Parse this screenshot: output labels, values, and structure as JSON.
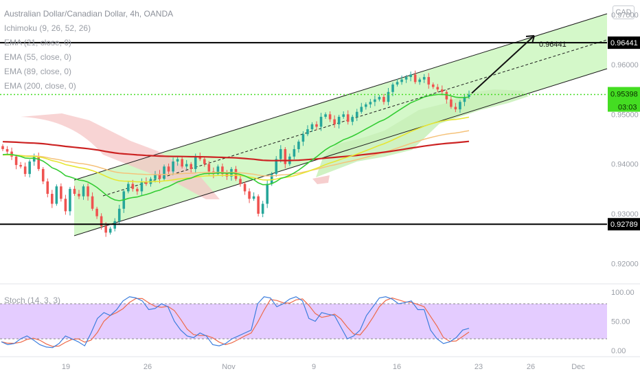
{
  "header": {
    "symbol_title": "Australian Dollar/Canadian Dollar, 4h, OANDA",
    "indicators": [
      "Ichimoku (9, 26, 52, 26)",
      "EMA (21, close, 0)",
      "EMA (55, close, 0)",
      "EMA (89, close, 0)",
      "EMA (200, close, 0)"
    ],
    "currency": "CAD"
  },
  "colors": {
    "up_candle": "#26a69a",
    "down_candle": "#ef5350",
    "channel_fill": "#ccf7c0",
    "ema21": "#33cc33",
    "ema55": "#e6e633",
    "ema89": "#f5c27a",
    "ema200": "#cc2222",
    "cloud_bull": "#c8f0b8",
    "cloud_bear": "#f5c6c6",
    "current_price": "#44dd22",
    "stoch_band": "#e4ccff",
    "stoch_k": "#3b7ddd",
    "stoch_d": "#ee6a4a"
  },
  "chart_data": {
    "type": "candlestick",
    "title": "Australian Dollar/Canadian Dollar, 4h, OANDA",
    "y_range": [
      0.917,
      0.973
    ],
    "y_ticks": [
      "0.97000",
      "0.96000",
      "0.95000",
      "0.94000",
      "0.93000",
      "0.92000"
    ],
    "x_ticks": [
      "19",
      "26",
      "Nov",
      "9",
      "16",
      "23",
      "26",
      "Dec"
    ],
    "price_labels": {
      "resistance": "0.96441",
      "current": "0.95398",
      "countdown": "03:03",
      "support": "0.92789"
    },
    "horizontal_levels": [
      0.96441,
      0.92789
    ],
    "current_price": 0.95398,
    "arrow_target_label": "0.96441",
    "close_series": [
      0.943,
      0.9425,
      0.9415,
      0.9398,
      0.9395,
      0.938,
      0.9405,
      0.9415,
      0.939,
      0.9365,
      0.934,
      0.932,
      0.9355,
      0.933,
      0.9305,
      0.935,
      0.934,
      0.9335,
      0.9355,
      0.9335,
      0.931,
      0.9295,
      0.9275,
      0.9262,
      0.927,
      0.9285,
      0.931,
      0.9345,
      0.936,
      0.935,
      0.9345,
      0.9365,
      0.936,
      0.937,
      0.938,
      0.937,
      0.9395,
      0.9385,
      0.9405,
      0.941,
      0.9395,
      0.94,
      0.939,
      0.9415,
      0.941,
      0.94,
      0.9385,
      0.938,
      0.9395,
      0.938,
      0.9375,
      0.939,
      0.937,
      0.936,
      0.9345,
      0.933,
      0.9335,
      0.93,
      0.932,
      0.936,
      0.938,
      0.941,
      0.943,
      0.94,
      0.9415,
      0.943,
      0.9445,
      0.946,
      0.947,
      0.948,
      0.9475,
      0.9495,
      0.95,
      0.949,
      0.948,
      0.9495,
      0.95,
      0.9485,
      0.9495,
      0.9505,
      0.9515,
      0.952,
      0.9525,
      0.953,
      0.9535,
      0.9525,
      0.9545,
      0.956,
      0.9565,
      0.957,
      0.9575,
      0.958,
      0.9565,
      0.957,
      0.9575,
      0.956,
      0.9555,
      0.955,
      0.9545,
      0.953,
      0.9515,
      0.951,
      0.9525,
      0.9535,
      0.95398
    ],
    "stochastic": {
      "label": "Stoch (14, 3, 3)",
      "params": [
        14,
        3,
        3
      ],
      "y_ticks": [
        "100.00",
        "50.00",
        "0.00"
      ],
      "bands": [
        80,
        20
      ],
      "k_values": [
        15,
        10,
        12,
        20,
        25,
        18,
        10,
        6,
        5,
        12,
        25,
        20,
        15,
        8,
        30,
        55,
        65,
        60,
        70,
        85,
        92,
        90,
        85,
        70,
        72,
        80,
        75,
        50,
        35,
        25,
        22,
        30,
        25,
        10,
        8,
        12,
        20,
        25,
        30,
        35,
        80,
        92,
        90,
        75,
        80,
        88,
        92,
        85,
        55,
        50,
        65,
        62,
        60,
        40,
        20,
        25,
        35,
        60,
        75,
        90,
        92,
        88,
        80,
        82,
        85,
        70,
        70,
        35,
        20,
        12,
        15,
        22,
        35,
        38
      ]
    },
    "channel": {
      "description": "ascending price channel with dashed midline",
      "arrow": "projected move toward upper channel"
    }
  }
}
